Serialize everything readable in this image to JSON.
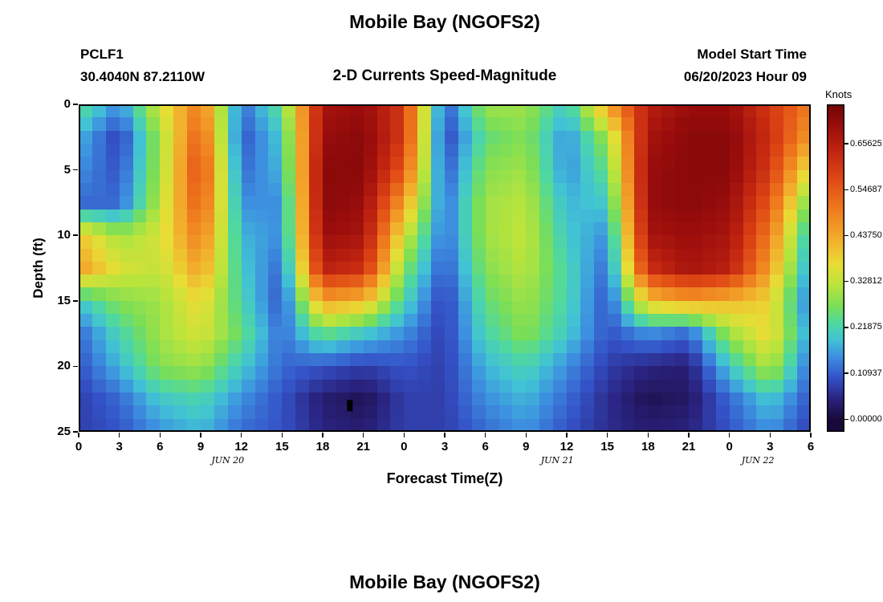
{
  "header": {
    "title": "Mobile Bay (NGOFS2)",
    "station_id": "PCLF1",
    "station_coords": "30.4040N  87.2110W",
    "subtitle": "2-D Currents Speed-Magnitude",
    "model_start_label": "Model Start Time",
    "model_start_value": "06/20/2023 Hour 09"
  },
  "footer": {
    "next_chart_title": "Mobile Bay (NGOFS2)"
  },
  "chart_data": {
    "type": "heatmap",
    "title": "Mobile Bay (NGOFS2)",
    "subtitle": "2-D Currents Speed-Magnitude",
    "xlabel": "Forecast Time(Z)",
    "ylabel": "Depth (ft)",
    "colorbar_label": "Knots",
    "xlim_hours": [
      0,
      54
    ],
    "ylim_feet": [
      0,
      25
    ],
    "x_tick_hours": [
      0,
      3,
      6,
      9,
      12,
      15,
      18,
      21,
      24,
      27,
      30,
      33,
      36,
      39,
      42,
      45,
      48,
      51,
      54
    ],
    "x_tick_labels": [
      "0",
      "3",
      "6",
      "9",
      "12",
      "15",
      "18",
      "21",
      "0",
      "3",
      "6",
      "9",
      "12",
      "15",
      "18",
      "21",
      "0",
      "3",
      "6"
    ],
    "y_tick_values": [
      0,
      5,
      10,
      15,
      20,
      25
    ],
    "y_tick_labels": [
      "0",
      "5",
      "10",
      "15",
      "20",
      "25"
    ],
    "date_labels": [
      {
        "label": "JUN 20",
        "hour": 11
      },
      {
        "label": "JUN 21",
        "hour": 35.3
      },
      {
        "label": "JUN 22",
        "hour": 50.1
      }
    ],
    "colorbar_ticks": [
      "0.65625",
      "0.54687",
      "0.43750",
      "0.32812",
      "0.21875",
      "0.10937",
      "0.00000"
    ],
    "colorbar_tick_values": [
      0.65625,
      0.54687,
      0.4375,
      0.32812,
      0.21875,
      0.10937,
      0.0
    ],
    "colorbar_value_range": [
      -0.03,
      0.75
    ],
    "grid_x_hours": [
      0,
      3,
      6,
      9,
      12,
      15,
      18,
      21,
      24,
      27,
      30,
      33,
      36,
      39,
      42,
      45,
      48,
      51,
      54
    ],
    "grid_y_feet": [
      0,
      2.5,
      5,
      7.5,
      10,
      12.5,
      15,
      17.5,
      20,
      22.5,
      25
    ],
    "values_knots": [
      [
        0.25,
        0.15,
        0.35,
        0.5,
        0.12,
        0.25,
        0.68,
        0.7,
        0.6,
        0.1,
        0.3,
        0.3,
        0.2,
        0.45,
        0.65,
        0.7,
        0.7,
        0.6,
        0.5
      ],
      [
        0.18,
        0.08,
        0.3,
        0.55,
        0.1,
        0.2,
        0.7,
        0.72,
        0.6,
        0.08,
        0.25,
        0.28,
        0.15,
        0.3,
        0.68,
        0.72,
        0.72,
        0.62,
        0.45
      ],
      [
        0.15,
        0.1,
        0.3,
        0.58,
        0.12,
        0.18,
        0.72,
        0.72,
        0.55,
        0.1,
        0.28,
        0.3,
        0.15,
        0.25,
        0.7,
        0.72,
        0.72,
        0.6,
        0.35
      ],
      [
        0.12,
        0.12,
        0.32,
        0.55,
        0.15,
        0.15,
        0.72,
        0.7,
        0.45,
        0.12,
        0.3,
        0.32,
        0.18,
        0.2,
        0.7,
        0.72,
        0.7,
        0.55,
        0.25
      ],
      [
        0.4,
        0.3,
        0.35,
        0.5,
        0.18,
        0.15,
        0.7,
        0.68,
        0.35,
        0.12,
        0.3,
        0.33,
        0.2,
        0.15,
        0.68,
        0.7,
        0.68,
        0.5,
        0.18
      ],
      [
        0.45,
        0.35,
        0.33,
        0.45,
        0.2,
        0.12,
        0.65,
        0.62,
        0.28,
        0.1,
        0.28,
        0.32,
        0.22,
        0.12,
        0.62,
        0.68,
        0.65,
        0.45,
        0.15
      ],
      [
        0.2,
        0.28,
        0.3,
        0.38,
        0.22,
        0.1,
        0.45,
        0.42,
        0.22,
        0.08,
        0.25,
        0.3,
        0.22,
        0.1,
        0.4,
        0.45,
        0.42,
        0.38,
        0.12
      ],
      [
        0.12,
        0.22,
        0.3,
        0.35,
        0.25,
        0.12,
        0.25,
        0.2,
        0.15,
        0.08,
        0.22,
        0.28,
        0.2,
        0.1,
        0.15,
        0.12,
        0.3,
        0.38,
        0.15
      ],
      [
        0.1,
        0.18,
        0.28,
        0.3,
        0.2,
        0.12,
        0.1,
        0.08,
        0.1,
        0.08,
        0.18,
        0.22,
        0.15,
        0.08,
        0.05,
        0.04,
        0.2,
        0.32,
        0.12
      ],
      [
        0.08,
        0.12,
        0.2,
        0.22,
        0.15,
        0.1,
        0.04,
        0.02,
        0.08,
        0.08,
        0.15,
        0.18,
        0.12,
        0.06,
        0.02,
        0.03,
        0.12,
        0.2,
        0.1
      ],
      [
        0.08,
        0.1,
        0.15,
        0.18,
        0.12,
        0.1,
        0.05,
        0.04,
        0.08,
        0.08,
        0.12,
        0.15,
        0.1,
        0.06,
        0.04,
        0.05,
        0.1,
        0.15,
        0.08
      ]
    ],
    "min_marker": {
      "hour": 20,
      "depth": 23,
      "color": "#000000"
    },
    "axis_color": "#000000",
    "colormap": [
      {
        "v": 0.0,
        "c": "#19093a"
      },
      {
        "v": 0.05,
        "c": "#2a2380"
      },
      {
        "v": 0.1,
        "c": "#3452c7"
      },
      {
        "v": 0.15,
        "c": "#3d8fe0"
      },
      {
        "v": 0.19,
        "c": "#41c2d5"
      },
      {
        "v": 0.23,
        "c": "#4fd8a0"
      },
      {
        "v": 0.27,
        "c": "#7ade57"
      },
      {
        "v": 0.32,
        "c": "#b9e43c"
      },
      {
        "v": 0.37,
        "c": "#e8dd35"
      },
      {
        "v": 0.43,
        "c": "#f2ad2c"
      },
      {
        "v": 0.5,
        "c": "#ef7b1e"
      },
      {
        "v": 0.57,
        "c": "#e04a15"
      },
      {
        "v": 0.64,
        "c": "#c02410"
      },
      {
        "v": 0.7,
        "c": "#9a0d0c"
      },
      {
        "v": 0.75,
        "c": "#730505"
      }
    ]
  }
}
